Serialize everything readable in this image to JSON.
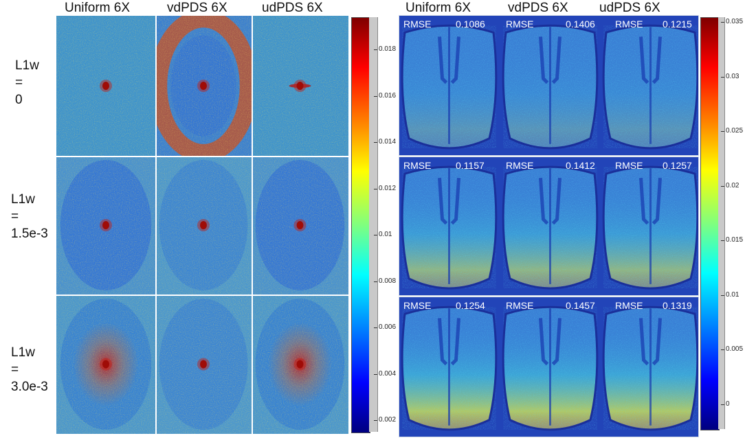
{
  "left_columns": [
    "Uniform 6X",
    "vdPDS 6X",
    "udPDS 6X"
  ],
  "right_columns": [
    "Uniform 6X",
    "vdPDS 6X",
    "udPDS 6X"
  ],
  "rows": [
    {
      "label_lines": [
        "L1w",
        "=",
        "0"
      ]
    },
    {
      "label_lines": [
        "L1w",
        "=",
        "1.5e-3"
      ]
    },
    {
      "label_lines": [
        "L1w",
        "=",
        "3.0e-3"
      ]
    }
  ],
  "left_colorbar": {
    "ticks": [
      "0.018",
      "0.016",
      "0.014",
      "0.012",
      "0.01",
      "0.008",
      "0.006",
      "0.004",
      "0.002"
    ]
  },
  "right_colorbar": {
    "ticks": [
      "0.035",
      "0.03",
      "0.025",
      "0.02",
      "0.015",
      "0.01",
      "0.005",
      "0"
    ]
  },
  "rmse_label": "RMSE",
  "rmse_values": [
    [
      "0.1086",
      "0.1406",
      "0.1215"
    ],
    [
      "0.1157",
      "0.1412",
      "0.1257"
    ],
    [
      "0.1254",
      "0.1457",
      "0.1319"
    ]
  ],
  "colors": {
    "jet_low": "#00007f",
    "jet_blue": "#0000ff",
    "jet_cyan": "#00ffff",
    "jet_yellow": "#ffff00",
    "jet_red": "#ff0000",
    "jet_high": "#7f0000",
    "field_blue": "#3d8fd0",
    "bg_blue": "#1f3fb0"
  }
}
